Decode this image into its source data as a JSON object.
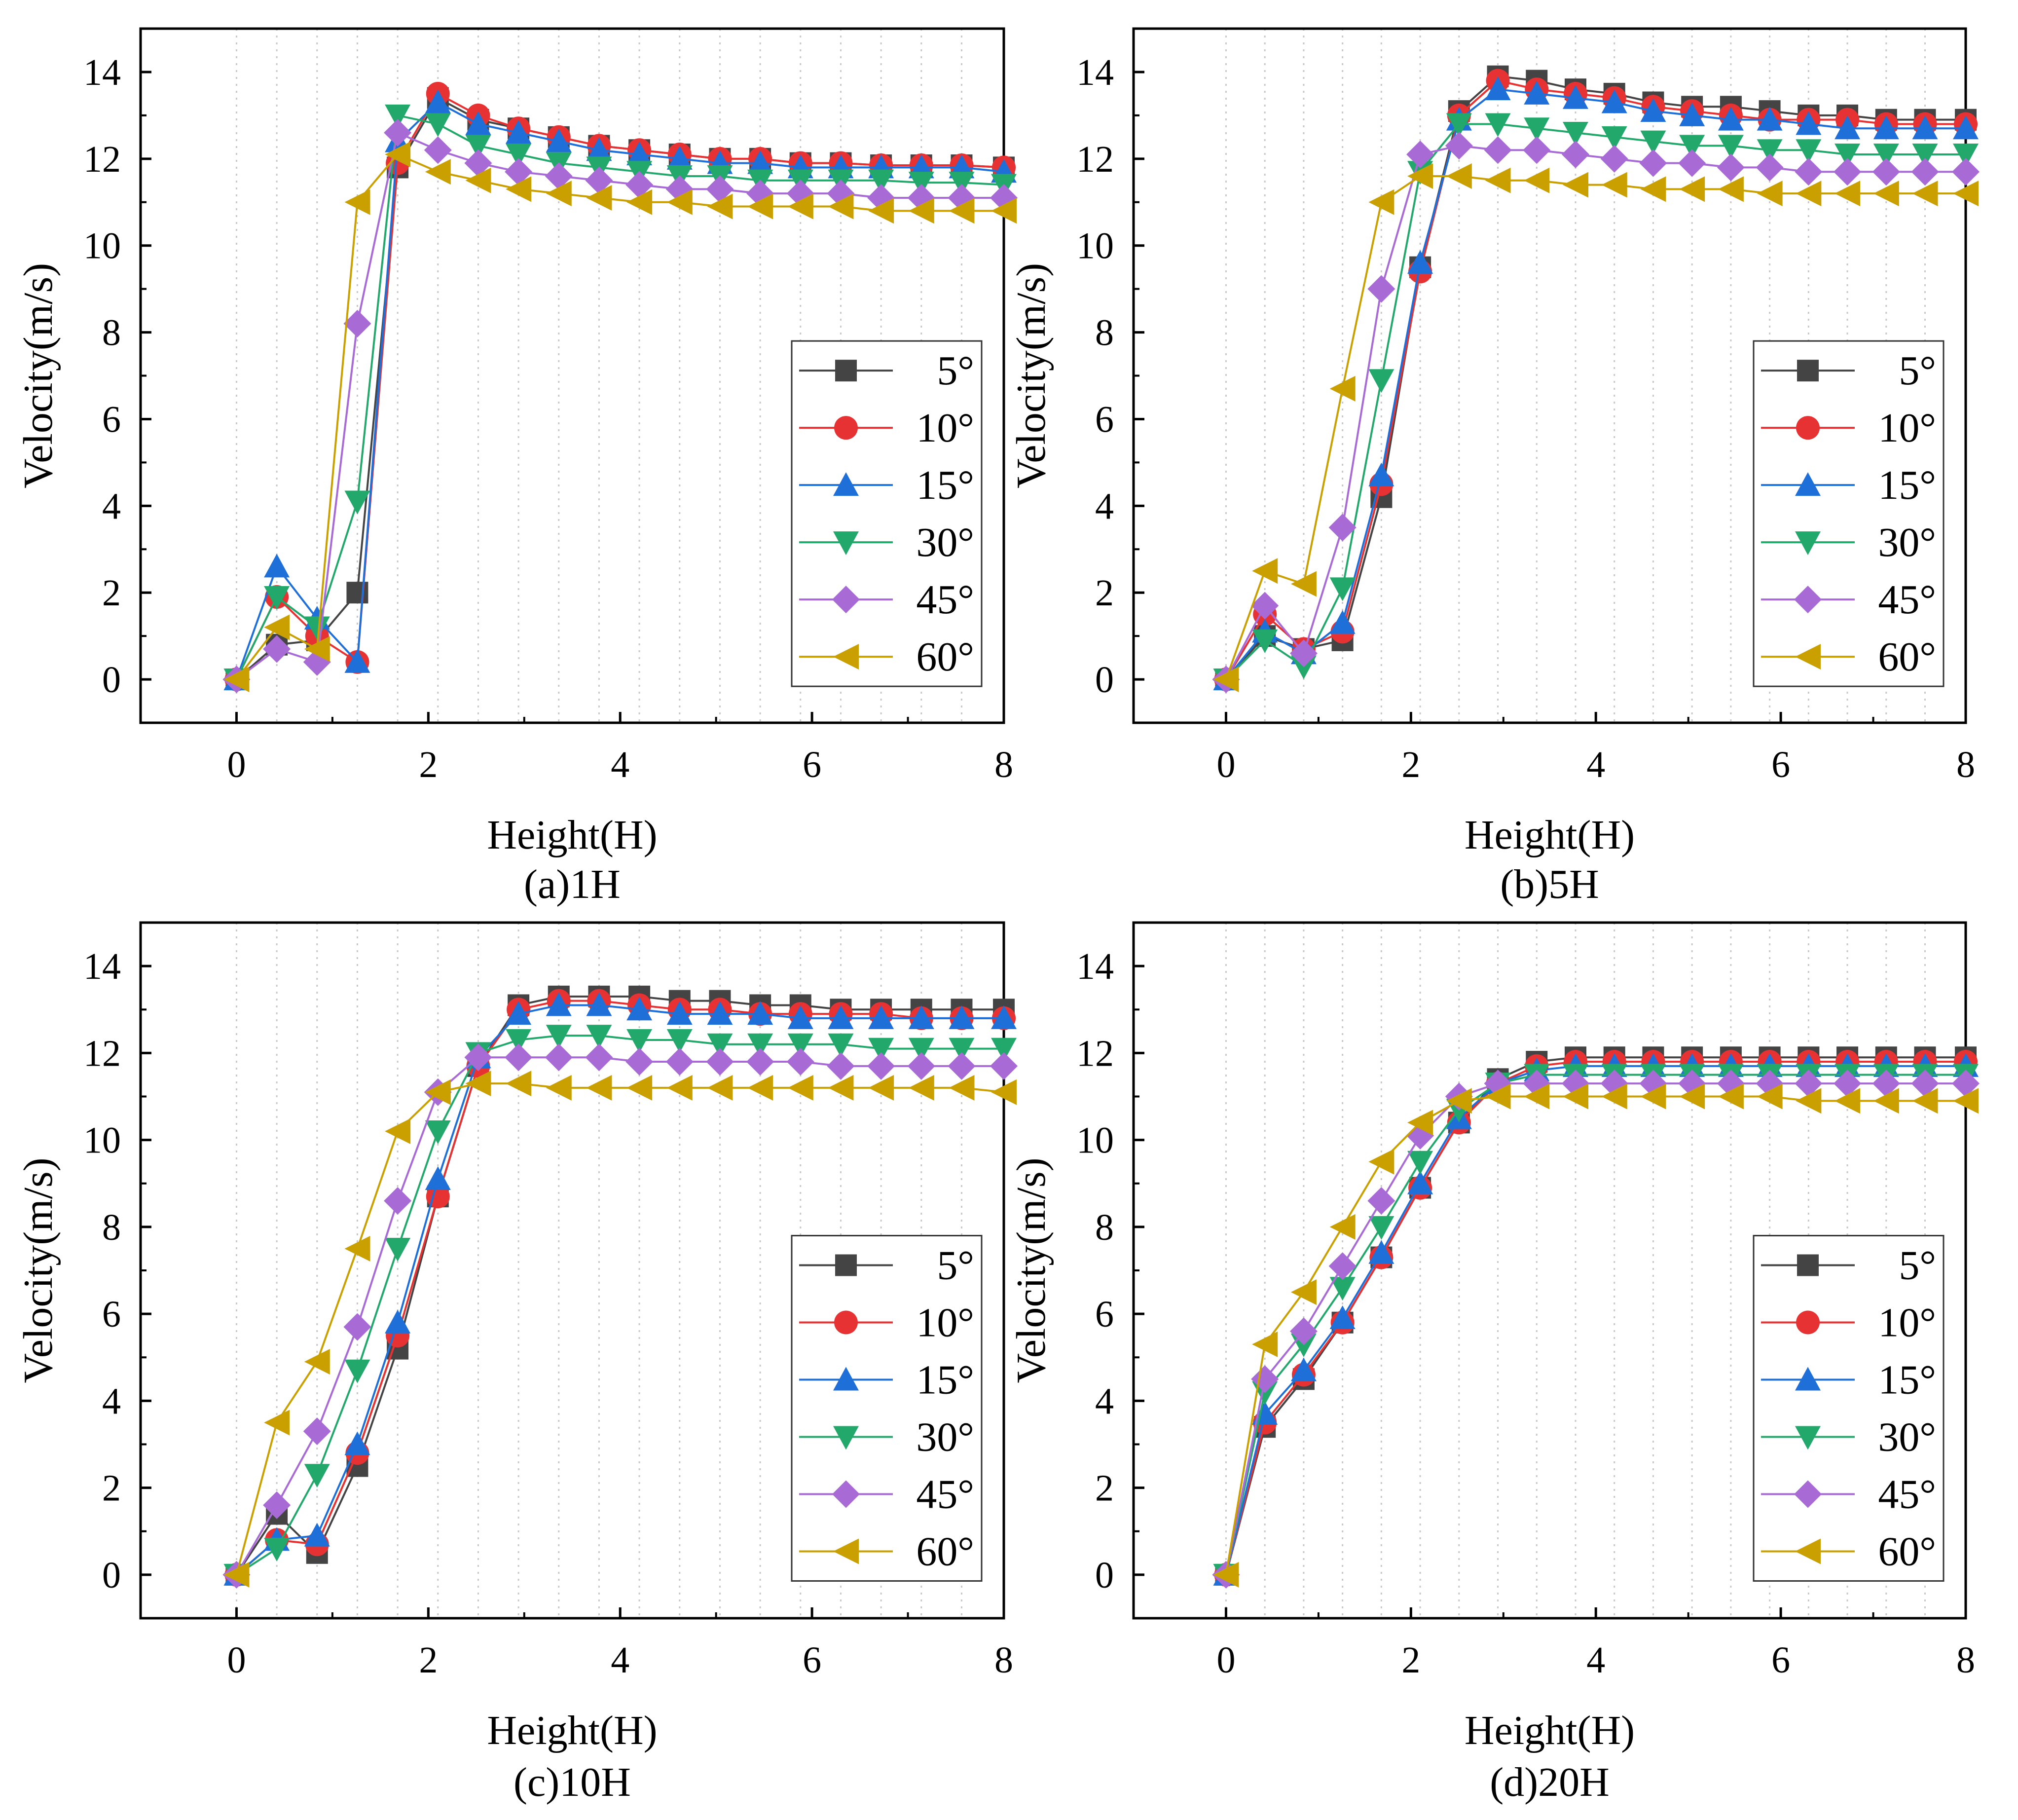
{
  "figure": {
    "colors": {
      "5°": "#444444",
      "10°": "#e63232",
      "15°": "#1f6fd8",
      "30°": "#23a86b",
      "45°": "#a86bd6",
      "60°": "#c9a000"
    },
    "markers": {
      "5°": "square",
      "10°": "circle",
      "15°": "triangle-up",
      "30°": "triangle-down",
      "45°": "diamond",
      "60°": "triangle-left"
    }
  },
  "chart_data": [
    {
      "type": "line",
      "panel_label": "(a)1H",
      "xlabel": "Height(H)",
      "ylabel": "Velocity(m/s)",
      "xlim": [
        -1,
        8
      ],
      "ylim": [
        -1,
        15
      ],
      "xticks": [
        "0",
        "2",
        "4",
        "6",
        "8"
      ],
      "yticks": [
        "0",
        "2",
        "4",
        "6",
        "8",
        "10",
        "12",
        "14"
      ],
      "x": [
        0,
        0.42,
        0.84,
        1.26,
        1.68,
        2.1,
        2.52,
        2.94,
        3.36,
        3.78,
        4.2,
        4.62,
        5.04,
        5.46,
        5.88,
        6.3,
        6.72,
        7.14,
        7.56,
        8.0
      ],
      "series": [
        {
          "name": "5°",
          "values": [
            0,
            0.8,
            0.9,
            2.0,
            11.8,
            13.4,
            12.9,
            12.7,
            12.5,
            12.3,
            12.2,
            12.1,
            12.0,
            12.0,
            11.9,
            11.9,
            11.85,
            11.85,
            11.85,
            11.8
          ]
        },
        {
          "name": "10°",
          "values": [
            0,
            1.9,
            1.0,
            0.4,
            11.9,
            13.5,
            13.0,
            12.7,
            12.5,
            12.3,
            12.2,
            12.1,
            12.0,
            12.0,
            11.9,
            11.9,
            11.85,
            11.85,
            11.85,
            11.8
          ]
        },
        {
          "name": "15°",
          "values": [
            0,
            2.6,
            1.4,
            0.4,
            12.4,
            13.3,
            12.8,
            12.6,
            12.4,
            12.2,
            12.1,
            12.0,
            11.9,
            11.9,
            11.8,
            11.8,
            11.8,
            11.8,
            11.8,
            11.7
          ]
        },
        {
          "name": "30°",
          "values": [
            0,
            1.9,
            1.2,
            4.1,
            13.0,
            12.8,
            12.3,
            12.1,
            11.9,
            11.8,
            11.7,
            11.6,
            11.6,
            11.5,
            11.5,
            11.5,
            11.5,
            11.45,
            11.45,
            11.4
          ]
        },
        {
          "name": "45°",
          "values": [
            0,
            0.7,
            0.4,
            8.2,
            12.6,
            12.2,
            11.9,
            11.7,
            11.6,
            11.5,
            11.4,
            11.3,
            11.3,
            11.2,
            11.2,
            11.2,
            11.1,
            11.1,
            11.1,
            11.1
          ]
        },
        {
          "name": "60°",
          "values": [
            0,
            1.2,
            0.7,
            11.0,
            12.1,
            11.7,
            11.5,
            11.3,
            11.2,
            11.1,
            11.0,
            11.0,
            10.9,
            10.9,
            10.9,
            10.9,
            10.8,
            10.8,
            10.8,
            10.8
          ]
        }
      ]
    },
    {
      "type": "line",
      "panel_label": "(b)5H",
      "xlabel": "Height(H)",
      "ylabel": "Velocity(m/s)",
      "xlim": [
        -1,
        8
      ],
      "ylim": [
        -1,
        15
      ],
      "xticks": [
        "0",
        "2",
        "4",
        "6",
        "8"
      ],
      "yticks": [
        "0",
        "2",
        "4",
        "6",
        "8",
        "10",
        "12",
        "14"
      ],
      "x": [
        0,
        0.42,
        0.84,
        1.26,
        1.68,
        2.1,
        2.52,
        2.94,
        3.36,
        3.78,
        4.2,
        4.62,
        5.04,
        5.46,
        5.88,
        6.3,
        6.72,
        7.14,
        7.56,
        8.0
      ],
      "series": [
        {
          "name": "5°",
          "values": [
            0,
            1.0,
            0.7,
            0.9,
            4.2,
            9.5,
            13.1,
            13.9,
            13.8,
            13.6,
            13.5,
            13.3,
            13.2,
            13.2,
            13.1,
            13.0,
            13.0,
            12.9,
            12.9,
            12.9
          ]
        },
        {
          "name": "10°",
          "values": [
            0,
            1.5,
            0.7,
            1.1,
            4.5,
            9.4,
            13.0,
            13.8,
            13.6,
            13.5,
            13.4,
            13.2,
            13.1,
            13.0,
            12.9,
            12.9,
            12.9,
            12.8,
            12.8,
            12.8
          ]
        },
        {
          "name": "15°",
          "values": [
            0,
            1.1,
            0.6,
            1.3,
            4.7,
            9.6,
            12.9,
            13.6,
            13.5,
            13.4,
            13.3,
            13.1,
            13.0,
            12.9,
            12.9,
            12.8,
            12.7,
            12.7,
            12.7,
            12.7
          ]
        },
        {
          "name": "30°",
          "values": [
            0,
            0.9,
            0.3,
            2.1,
            6.9,
            11.7,
            12.8,
            12.8,
            12.7,
            12.6,
            12.5,
            12.4,
            12.3,
            12.3,
            12.2,
            12.2,
            12.1,
            12.1,
            12.1,
            12.1
          ]
        },
        {
          "name": "45°",
          "values": [
            0,
            1.7,
            0.6,
            3.5,
            9.0,
            12.1,
            12.3,
            12.2,
            12.2,
            12.1,
            12.0,
            11.9,
            11.9,
            11.8,
            11.8,
            11.7,
            11.7,
            11.7,
            11.7,
            11.7
          ]
        },
        {
          "name": "60°",
          "values": [
            0,
            2.5,
            2.2,
            6.7,
            11.0,
            11.6,
            11.6,
            11.5,
            11.5,
            11.4,
            11.4,
            11.3,
            11.3,
            11.3,
            11.2,
            11.2,
            11.2,
            11.2,
            11.2,
            11.2
          ]
        }
      ]
    },
    {
      "type": "line",
      "panel_label": "(c)10H",
      "xlabel": "Height(H)",
      "ylabel": "Velocity(m/s)",
      "xlim": [
        -1,
        8
      ],
      "ylim": [
        -1,
        15
      ],
      "xticks": [
        "0",
        "2",
        "4",
        "6",
        "8"
      ],
      "yticks": [
        "0",
        "2",
        "4",
        "6",
        "8",
        "10",
        "12",
        "14"
      ],
      "x": [
        0,
        0.42,
        0.84,
        1.26,
        1.68,
        2.1,
        2.52,
        2.94,
        3.36,
        3.78,
        4.2,
        4.62,
        5.04,
        5.46,
        5.88,
        6.3,
        6.72,
        7.14,
        7.56,
        8.0
      ],
      "series": [
        {
          "name": "5°",
          "values": [
            0,
            1.4,
            0.5,
            2.5,
            5.2,
            8.7,
            11.7,
            13.1,
            13.3,
            13.3,
            13.3,
            13.2,
            13.2,
            13.1,
            13.1,
            13.0,
            13.0,
            13.0,
            13.0,
            13.0
          ]
        },
        {
          "name": "10°",
          "values": [
            0,
            0.8,
            0.7,
            2.8,
            5.5,
            8.7,
            11.7,
            13.0,
            13.2,
            13.2,
            13.1,
            13.0,
            13.0,
            12.9,
            12.9,
            12.9,
            12.9,
            12.8,
            12.8,
            12.8
          ]
        },
        {
          "name": "15°",
          "values": [
            0,
            0.8,
            0.9,
            3.0,
            5.8,
            9.1,
            11.9,
            12.9,
            13.1,
            13.1,
            13.0,
            12.9,
            12.9,
            12.9,
            12.8,
            12.8,
            12.8,
            12.8,
            12.8,
            12.8
          ]
        },
        {
          "name": "30°",
          "values": [
            0,
            0.6,
            2.3,
            4.7,
            7.5,
            10.2,
            12.0,
            12.3,
            12.4,
            12.4,
            12.3,
            12.3,
            12.2,
            12.2,
            12.2,
            12.2,
            12.1,
            12.1,
            12.1,
            12.1
          ]
        },
        {
          "name": "45°",
          "values": [
            0,
            1.6,
            3.3,
            5.7,
            8.6,
            11.1,
            11.9,
            11.9,
            11.9,
            11.9,
            11.8,
            11.8,
            11.8,
            11.8,
            11.8,
            11.7,
            11.7,
            11.7,
            11.7,
            11.7
          ]
        },
        {
          "name": "60°",
          "values": [
            0,
            3.5,
            4.9,
            7.5,
            10.2,
            11.1,
            11.3,
            11.3,
            11.2,
            11.2,
            11.2,
            11.2,
            11.2,
            11.2,
            11.2,
            11.2,
            11.2,
            11.2,
            11.2,
            11.1
          ]
        }
      ]
    },
    {
      "type": "line",
      "panel_label": "(d)20H",
      "xlabel": "Height(H)",
      "ylabel": "Velocity(m/s)",
      "xlim": [
        -1,
        8
      ],
      "ylim": [
        -1,
        15
      ],
      "xticks": [
        "0",
        "2",
        "4",
        "6",
        "8"
      ],
      "yticks": [
        "0",
        "2",
        "4",
        "6",
        "8",
        "10",
        "12",
        "14"
      ],
      "x": [
        0,
        0.42,
        0.84,
        1.26,
        1.68,
        2.1,
        2.52,
        2.94,
        3.36,
        3.78,
        4.2,
        4.62,
        5.04,
        5.46,
        5.88,
        6.3,
        6.72,
        7.14,
        7.56,
        8.0
      ],
      "series": [
        {
          "name": "5°",
          "values": [
            0,
            3.4,
            4.5,
            5.8,
            7.3,
            8.9,
            10.4,
            11.4,
            11.8,
            11.9,
            11.9,
            11.9,
            11.9,
            11.9,
            11.9,
            11.9,
            11.9,
            11.9,
            11.9,
            11.9
          ]
        },
        {
          "name": "10°",
          "values": [
            0,
            3.5,
            4.6,
            5.8,
            7.3,
            8.9,
            10.4,
            11.3,
            11.7,
            11.8,
            11.8,
            11.8,
            11.8,
            11.8,
            11.8,
            11.8,
            11.8,
            11.8,
            11.8,
            11.8
          ]
        },
        {
          "name": "15°",
          "values": [
            0,
            3.7,
            4.7,
            5.9,
            7.4,
            9.0,
            10.5,
            11.3,
            11.6,
            11.7,
            11.7,
            11.7,
            11.7,
            11.7,
            11.7,
            11.7,
            11.7,
            11.7,
            11.7,
            11.7
          ]
        },
        {
          "name": "30°",
          "values": [
            0,
            4.2,
            5.3,
            6.6,
            8.0,
            9.5,
            10.7,
            11.3,
            11.5,
            11.5,
            11.5,
            11.5,
            11.5,
            11.5,
            11.5,
            11.5,
            11.5,
            11.5,
            11.5,
            11.5
          ]
        },
        {
          "name": "45°",
          "values": [
            0,
            4.5,
            5.6,
            7.1,
            8.6,
            10.1,
            11.0,
            11.3,
            11.3,
            11.3,
            11.3,
            11.3,
            11.3,
            11.3,
            11.3,
            11.3,
            11.3,
            11.3,
            11.3,
            11.3
          ]
        },
        {
          "name": "60°",
          "values": [
            0,
            5.3,
            6.5,
            8.0,
            9.5,
            10.4,
            10.9,
            11.0,
            11.0,
            11.0,
            11.0,
            11.0,
            11.0,
            11.0,
            11.0,
            10.9,
            10.9,
            10.9,
            10.9,
            10.9
          ]
        }
      ]
    }
  ]
}
